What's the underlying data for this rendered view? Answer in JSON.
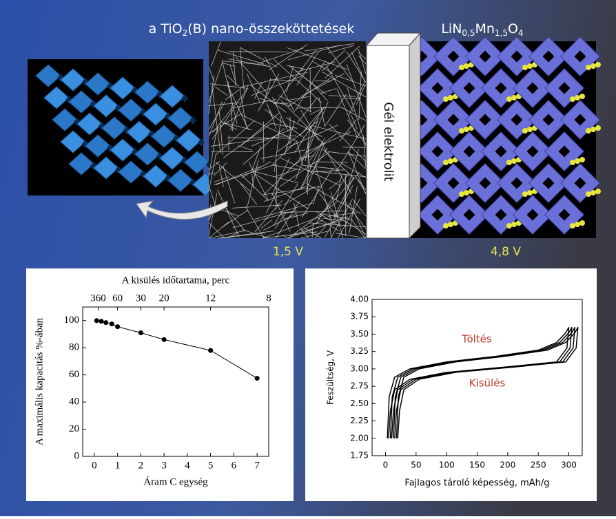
{
  "header": {
    "left_label": [
      "a TiO",
      "2",
      "(B) nano-összeköttetések"
    ],
    "right_label": [
      "LiN",
      "0,5",
      "Mn",
      "1,5",
      "O",
      "4"
    ],
    "separator_label": "Gél elektrolit",
    "left_voltage": "1,5 V",
    "right_voltage": "4,8 V"
  },
  "chart_data": [
    {
      "type": "line",
      "markers": true,
      "x2label": "A kisülés időtartama, perc",
      "xlabel": "Áram C egység",
      "ylabel": "A maximális kapacitás %-ában",
      "xlim": [
        -0.5,
        7.5
      ],
      "xticks": [
        0,
        1,
        2,
        3,
        4,
        5,
        6,
        7
      ],
      "ylim": [
        0,
        110
      ],
      "yticks": [
        0,
        20,
        40,
        60,
        80,
        100
      ],
      "x2scale": "reciprocal",
      "x2ticks": [
        360,
        60,
        30,
        20,
        12,
        8
      ],
      "series": [
        {
          "color": "#000000",
          "x": [
            0.1,
            0.3,
            0.5,
            0.75,
            1,
            2,
            3,
            5,
            7
          ],
          "values": [
            100,
            99.5,
            98.5,
            97.5,
            95.5,
            91,
            86,
            78,
            57.5
          ]
        }
      ]
    },
    {
      "type": "line",
      "markers": false,
      "xlabel": "Fajlagos tároló képesség, mAh/g",
      "ylabel": "Feszültség, V",
      "annotations": [
        "Töltés",
        "Kisülés"
      ],
      "xlim": [
        -22,
        322
      ],
      "xticks": [
        0,
        50,
        100,
        150,
        200,
        250,
        300
      ],
      "ylim": [
        1.75,
        4.0
      ],
      "yticks": [
        {
          "value": 1.75,
          "label": "1.75"
        },
        {
          "value": 2,
          "label": "2.00"
        },
        {
          "value": 2.25,
          "label": "2.25"
        },
        {
          "value": 2.5,
          "label": "2.50"
        },
        {
          "value": 2.75,
          "label": "2.75"
        },
        {
          "value": 3,
          "label": "3.00"
        },
        {
          "value": 3.25,
          "label": "3.25"
        },
        {
          "value": 3.5,
          "label": "3.50"
        },
        {
          "value": 3.75,
          "label": "3.75"
        },
        {
          "value": 4,
          "label": "4.00"
        }
      ],
      "series": [
        {
          "color": "#000000",
          "x": [
            3,
            6,
            15,
            40,
            100,
            180,
            250,
            280,
            295,
            300,
            297,
            280,
            200,
            100,
            40,
            15,
            8,
            5
          ],
          "values": [
            2.0,
            2.6,
            2.88,
            3.0,
            3.1,
            3.18,
            3.27,
            3.38,
            3.52,
            3.6,
            3.3,
            3.1,
            3.03,
            2.95,
            2.85,
            2.7,
            2.4,
            2.0
          ]
        },
        {
          "color": "#000000",
          "x": [
            8,
            11,
            20,
            45,
            105,
            185,
            255,
            285,
            300,
            305,
            302,
            285,
            205,
            105,
            45,
            20,
            13,
            10
          ],
          "values": [
            2.0,
            2.6,
            2.88,
            3.0,
            3.1,
            3.18,
            3.27,
            3.38,
            3.52,
            3.6,
            3.3,
            3.1,
            3.03,
            2.95,
            2.85,
            2.7,
            2.4,
            2.0
          ]
        },
        {
          "color": "#000000",
          "x": [
            13,
            16,
            25,
            50,
            110,
            190,
            260,
            290,
            305,
            310,
            307,
            290,
            210,
            110,
            50,
            25,
            18,
            15
          ],
          "values": [
            2.0,
            2.6,
            2.88,
            3.0,
            3.1,
            3.18,
            3.27,
            3.38,
            3.52,
            3.6,
            3.3,
            3.1,
            3.03,
            2.95,
            2.85,
            2.7,
            2.4,
            2.0
          ]
        },
        {
          "color": "#000000",
          "x": [
            18,
            21,
            30,
            55,
            115,
            195,
            265,
            295,
            310,
            315,
            312,
            295,
            215,
            115,
            55,
            30,
            23,
            20
          ],
          "values": [
            2.0,
            2.6,
            2.88,
            3.0,
            3.1,
            3.18,
            3.27,
            3.38,
            3.52,
            3.6,
            3.3,
            3.1,
            3.03,
            2.95,
            2.85,
            2.7,
            2.4,
            2.0
          ]
        }
      ]
    }
  ]
}
